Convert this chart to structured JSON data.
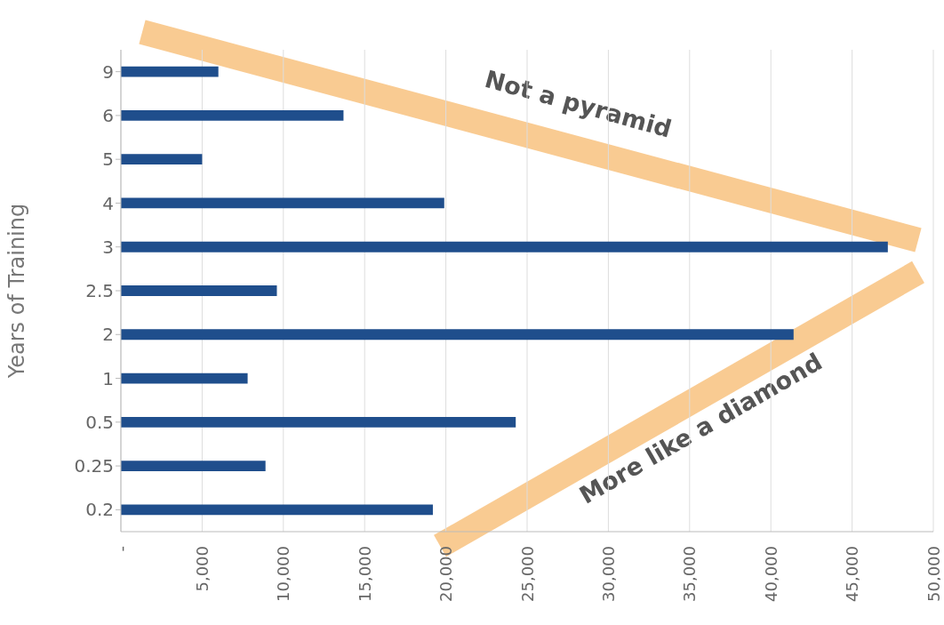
{
  "chart_data": {
    "type": "bar",
    "orientation": "horizontal",
    "ylabel": "Years of Training",
    "categories": [
      "9",
      "6",
      "5",
      "4",
      "3",
      "2.5",
      "2",
      "1",
      "0.5",
      "0.25",
      "0.2"
    ],
    "values": [
      6000,
      13700,
      5000,
      19900,
      47200,
      9600,
      41400,
      7800,
      24300,
      8900,
      19200
    ],
    "color": "#1f4e8c",
    "xlim": [
      0,
      50000
    ],
    "xticks": [
      {
        "value": 0,
        "label": "-"
      },
      {
        "value": 5000,
        "label": "5,000"
      },
      {
        "value": 10000,
        "label": "10,000"
      },
      {
        "value": 15000,
        "label": "15,000"
      },
      {
        "value": 20000,
        "label": "20,000"
      },
      {
        "value": 25000,
        "label": "25,000"
      },
      {
        "value": 30000,
        "label": "30,000"
      },
      {
        "value": 35000,
        "label": "35,000"
      },
      {
        "value": 40000,
        "label": "40,000"
      },
      {
        "value": 45000,
        "label": "45,000"
      },
      {
        "value": 50000,
        "label": "50,000"
      }
    ],
    "grid": "x",
    "annotations": [
      "Not a pyramid",
      "More like a diamond"
    ]
  }
}
